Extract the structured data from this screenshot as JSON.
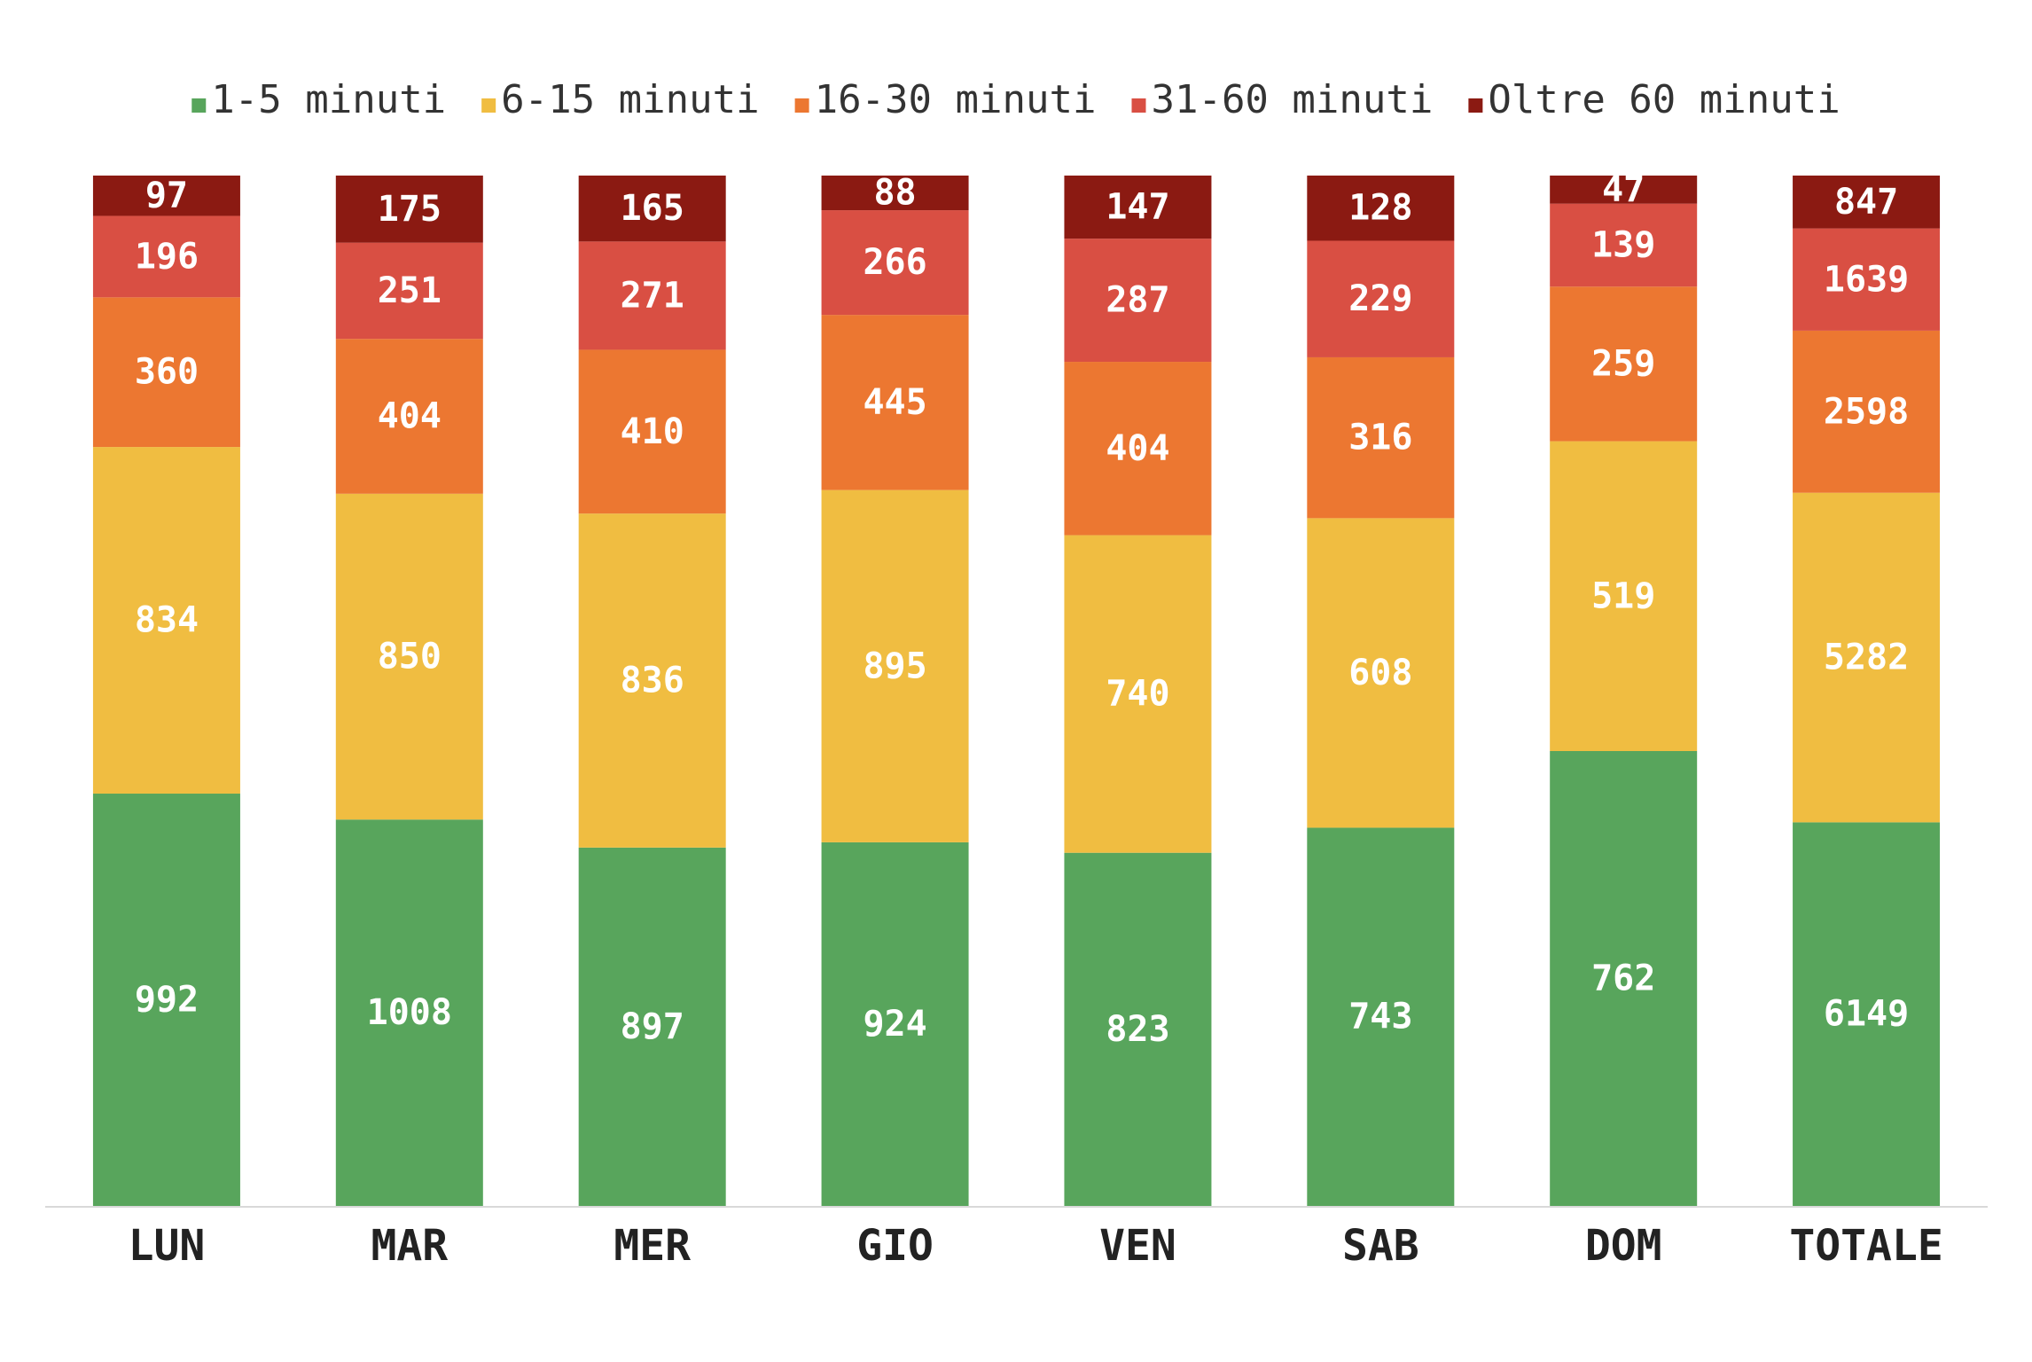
{
  "chart_data": {
    "type": "bar",
    "stacking": "percent",
    "categories": [
      "LUN",
      "MAR",
      "MER",
      "GIO",
      "VEN",
      "SAB",
      "DOM",
      "TOTALE"
    ],
    "series": [
      {
        "name": "1-5 minuti",
        "color": "#58a55c",
        "values": [
          992,
          1008,
          897,
          924,
          823,
          743,
          762,
          6149
        ]
      },
      {
        "name": "6-15 minuti",
        "color": "#f0bd41",
        "values": [
          834,
          850,
          836,
          895,
          740,
          608,
          519,
          5282
        ]
      },
      {
        "name": "16-30 minuti",
        "color": "#ec7731",
        "values": [
          360,
          404,
          410,
          445,
          404,
          316,
          259,
          2598
        ]
      },
      {
        "name": "31-60 minuti",
        "color": "#d94f43",
        "values": [
          196,
          251,
          271,
          266,
          287,
          229,
          139,
          1639
        ]
      },
      {
        "name": "Oltre 60 minuti",
        "color": "#8b1a12",
        "values": [
          97,
          175,
          165,
          88,
          147,
          128,
          47,
          847
        ]
      }
    ],
    "legend": "top"
  }
}
